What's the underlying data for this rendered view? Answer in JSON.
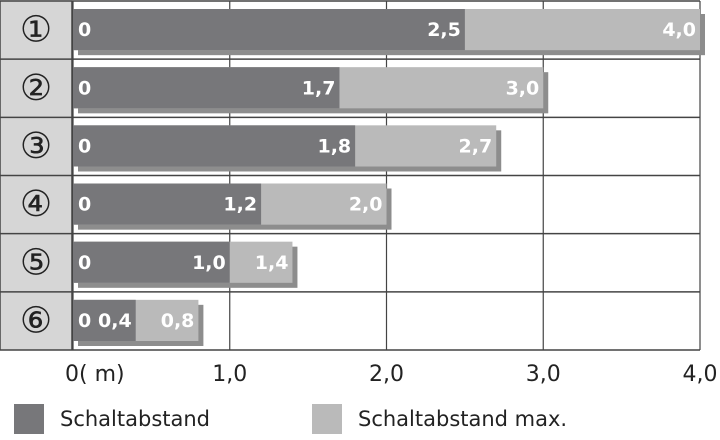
{
  "chart_data": {
    "type": "bar",
    "orientation": "horizontal",
    "bar_mode": "overlay",
    "categories": [
      "①",
      "②",
      "③",
      "④",
      "⑤",
      "⑥"
    ],
    "bar_start_label": "0",
    "series": [
      {
        "name": "Schaltabstand max.",
        "color": "#bababa",
        "values": [
          4.0,
          3.0,
          2.7,
          2.0,
          1.4,
          0.8
        ],
        "value_labels": [
          "4,0",
          "3,0",
          "2,7",
          "2,0",
          "1,4",
          "0,8"
        ]
      },
      {
        "name": "Schaltabstand",
        "color": "#77777a",
        "values": [
          2.5,
          1.7,
          1.8,
          1.2,
          1.0,
          0.4
        ],
        "value_labels": [
          "2,5",
          "1,7",
          "1,8",
          "1,2",
          "1,0",
          "0,4"
        ]
      }
    ],
    "xlim": [
      0,
      4.0
    ],
    "xticks": [
      {
        "value": 0,
        "label": "0( m)"
      },
      {
        "value": 1,
        "label": "1,0"
      },
      {
        "value": 2,
        "label": "2,0"
      },
      {
        "value": 3,
        "label": "3,0"
      },
      {
        "value": 4,
        "label": "4,0"
      }
    ],
    "grid": true
  }
}
